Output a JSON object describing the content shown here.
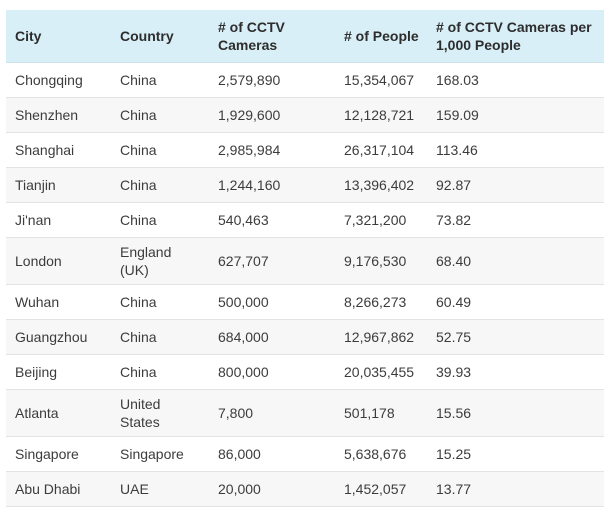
{
  "table": {
    "headers": {
      "city": "City",
      "country": "Country",
      "cameras": "# of CCTV Cameras",
      "people": "# of People",
      "per_thousand": "# of CCTV Cameras per 1,000 People"
    },
    "rows": [
      {
        "city": "Chongqing",
        "country": "China",
        "cameras": "2,579,890",
        "people": "15,354,067",
        "per_thousand": "168.03"
      },
      {
        "city": "Shenzhen",
        "country": "China",
        "cameras": "1,929,600",
        "people": "12,128,721",
        "per_thousand": "159.09"
      },
      {
        "city": "Shanghai",
        "country": "China",
        "cameras": "2,985,984",
        "people": "26,317,104",
        "per_thousand": "113.46"
      },
      {
        "city": "Tianjin",
        "country": "China",
        "cameras": "1,244,160",
        "people": "13,396,402",
        "per_thousand": "92.87"
      },
      {
        "city": "Ji'nan",
        "country": "China",
        "cameras": "540,463",
        "people": "7,321,200",
        "per_thousand": "73.82"
      },
      {
        "city": "London",
        "country": "England (UK)",
        "cameras": "627,707",
        "people": "9,176,530",
        "per_thousand": "68.40"
      },
      {
        "city": "Wuhan",
        "country": "China",
        "cameras": "500,000",
        "people": "8,266,273",
        "per_thousand": "60.49"
      },
      {
        "city": "Guangzhou",
        "country": "China",
        "cameras": "684,000",
        "people": "12,967,862",
        "per_thousand": "52.75"
      },
      {
        "city": "Beijing",
        "country": "China",
        "cameras": "800,000",
        "people": "20,035,455",
        "per_thousand": "39.93"
      },
      {
        "city": "Atlanta",
        "country": "United States",
        "cameras": "7,800",
        "people": "501,178",
        "per_thousand": "15.56"
      },
      {
        "city": "Singapore",
        "country": "Singapore",
        "cameras": "86,000",
        "people": "5,638,676",
        "per_thousand": "15.25"
      },
      {
        "city": "Abu Dhabi",
        "country": "UAE",
        "cameras": "20,000",
        "people": "1,452,057",
        "per_thousand": "13.77"
      }
    ]
  }
}
